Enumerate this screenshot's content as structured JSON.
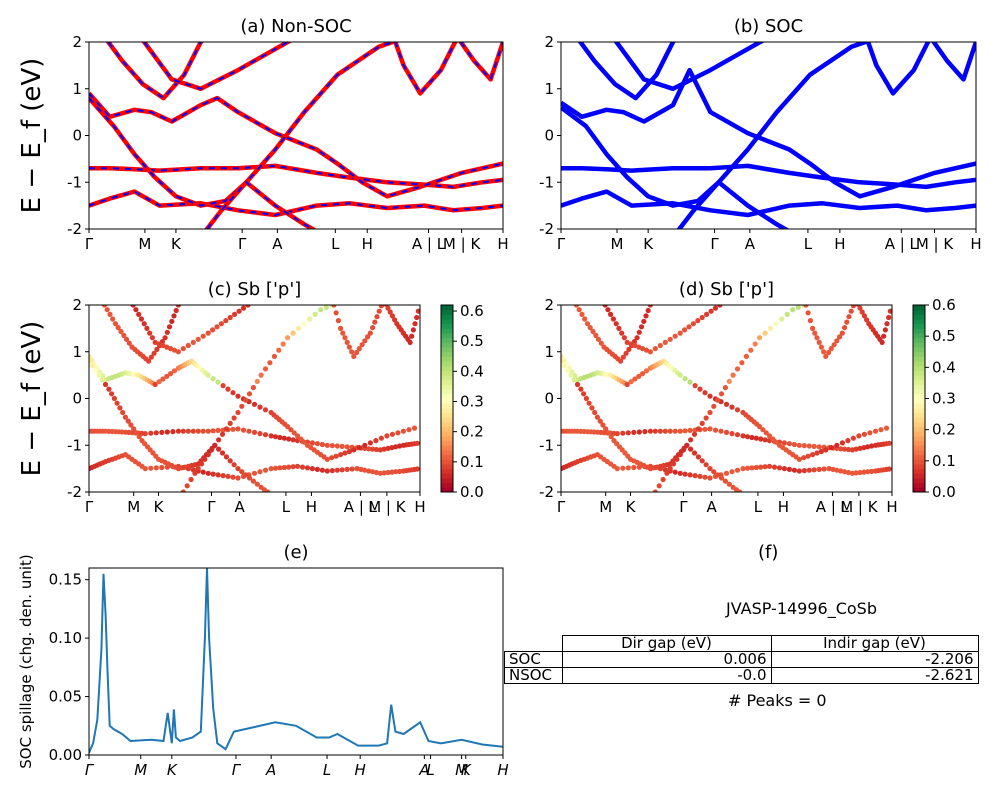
{
  "chart_data": [
    {
      "type": "line",
      "panel": "a",
      "title": "(a) Non-SOC",
      "ylabel": "E − E_f (eV)",
      "ylim": [
        -2,
        2
      ],
      "yticks": [
        -2,
        -1,
        0,
        1,
        2
      ],
      "kpath_labels": [
        "Γ",
        "M",
        "K",
        "Γ",
        "A",
        "L",
        "H",
        "A | L",
        "M | K",
        "H"
      ],
      "series": [
        {
          "color": "#ff0000",
          "dash_color": "#0000ff",
          "bands": [
            {
              "x": [
                0,
                0.05,
                0.11,
                0.17,
                0.27,
                0.36,
                0.45,
                0.55,
                0.63,
                0.72,
                0.81,
                0.88,
                0.95,
                1.0
              ],
              "y": [
                -1.5,
                -1.35,
                -1.2,
                -1.5,
                -1.45,
                -1.6,
                -1.7,
                -1.5,
                -1.45,
                -1.55,
                -1.5,
                -1.6,
                -1.55,
                -1.5
              ]
            },
            {
              "x": [
                0,
                0.05,
                0.11,
                0.17,
                0.27,
                0.36,
                0.45,
                0.55,
                0.63,
                0.72,
                0.81,
                0.88,
                0.95,
                1.0
              ],
              "y": [
                -0.7,
                -0.7,
                -0.72,
                -0.75,
                -0.7,
                -0.7,
                -0.65,
                -0.8,
                -0.9,
                -1.0,
                -1.05,
                -1.1,
                -1.0,
                -0.95
              ]
            },
            {
              "x": [
                0,
                0.05,
                0.11,
                0.15,
                0.2,
                0.27,
                0.31,
                0.36,
                0.45,
                0.55,
                0.6,
                0.66,
                0.72,
                0.8,
                0.9,
                1.0
              ],
              "y": [
                0.9,
                0.4,
                0.55,
                0.5,
                0.3,
                0.65,
                0.8,
                0.5,
                0.05,
                -0.3,
                -0.6,
                -1.0,
                -1.3,
                -1.1,
                -0.8,
                -0.6
              ]
            },
            {
              "x": [
                0,
                0.06,
                0.11,
                0.16,
                0.21,
                0.27,
                0.33,
                0.38,
                0.45,
                0.52,
                0.6,
                0.7,
                0.8,
                0.9,
                1.0
              ],
              "y": [
                0.8,
                0.2,
                -0.4,
                -0.9,
                -1.3,
                -1.5,
                -1.4,
                -1.0,
                -0.3,
                0.5,
                1.3,
                1.9,
                2.2,
                2.4,
                2.6
              ]
            },
            {
              "x": [
                0.03,
                0.08,
                0.13,
                0.18,
                0.23,
                0.27,
                0.32
              ],
              "y": [
                2.2,
                1.6,
                1.1,
                0.8,
                1.3,
                2.0,
                2.5
              ]
            },
            {
              "x": [
                0.1,
                0.15,
                0.2,
                0.27,
                0.36,
                0.44,
                0.52,
                0.58,
                0.63
              ],
              "y": [
                2.4,
                1.8,
                1.2,
                1.0,
                1.4,
                1.8,
                2.2,
                2.6,
                2.8
              ]
            },
            {
              "x": [
                0.25,
                0.32,
                0.38,
                0.45,
                0.52,
                0.58,
                0.64
              ],
              "y": [
                -2.4,
                -1.6,
                -1.0,
                -1.5,
                -1.9,
                -2.2,
                -2.4
              ]
            },
            {
              "x": [
                0.72,
                0.76,
                0.8,
                0.85,
                0.89,
                0.93,
                0.97,
                1.0
              ],
              "y": [
                2.5,
                1.5,
                0.9,
                1.4,
                2.1,
                1.6,
                1.2,
                2.0
              ]
            }
          ]
        }
      ]
    },
    {
      "type": "line",
      "panel": "b",
      "title": "(b) SOC",
      "ylim": [
        -2,
        2
      ],
      "yticks": [
        -2,
        -1,
        0,
        1,
        2
      ],
      "kpath_labels": [
        "Γ",
        "M",
        "K",
        "Γ",
        "A",
        "L",
        "H",
        "A | L",
        "M | K",
        "H"
      ],
      "series": [
        {
          "color": "#0000ff",
          "bands": [
            {
              "x": [
                0,
                0.05,
                0.11,
                0.17,
                0.27,
                0.36,
                0.45,
                0.55,
                0.63,
                0.72,
                0.81,
                0.88,
                0.95,
                1.0
              ],
              "y": [
                -1.5,
                -1.35,
                -1.2,
                -1.5,
                -1.45,
                -1.6,
                -1.7,
                -1.5,
                -1.45,
                -1.55,
                -1.5,
                -1.6,
                -1.55,
                -1.5
              ]
            },
            {
              "x": [
                0,
                0.05,
                0.11,
                0.17,
                0.27,
                0.36,
                0.45,
                0.55,
                0.63,
                0.72,
                0.81,
                0.88,
                0.95,
                1.0
              ],
              "y": [
                -0.7,
                -0.7,
                -0.72,
                -0.75,
                -0.7,
                -0.7,
                -0.65,
                -0.8,
                -0.9,
                -1.0,
                -1.05,
                -1.1,
                -1.0,
                -0.95
              ]
            },
            {
              "x": [
                0,
                0.05,
                0.11,
                0.15,
                0.2,
                0.27,
                0.31,
                0.36,
                0.45,
                0.55,
                0.6,
                0.66,
                0.72,
                0.8,
                0.9,
                1.0
              ],
              "y": [
                0.7,
                0.4,
                0.55,
                0.5,
                0.3,
                0.65,
                1.4,
                0.5,
                0.05,
                -0.3,
                -0.6,
                -1.0,
                -1.3,
                -1.1,
                -0.8,
                -0.6
              ]
            },
            {
              "x": [
                0,
                0.06,
                0.11,
                0.16,
                0.21,
                0.27,
                0.33,
                0.38,
                0.45,
                0.52,
                0.6,
                0.7,
                0.8,
                0.9,
                1.0
              ],
              "y": [
                0.6,
                0.2,
                -0.4,
                -0.9,
                -1.3,
                -1.5,
                -1.4,
                -1.0,
                -0.3,
                0.5,
                1.3,
                1.9,
                2.2,
                2.4,
                2.6
              ]
            },
            {
              "x": [
                0.03,
                0.08,
                0.13,
                0.18,
                0.23,
                0.27,
                0.32
              ],
              "y": [
                2.2,
                1.6,
                1.1,
                0.8,
                1.3,
                2.0,
                2.5
              ]
            },
            {
              "x": [
                0.1,
                0.15,
                0.2,
                0.27,
                0.36,
                0.44,
                0.52,
                0.58,
                0.63
              ],
              "y": [
                2.4,
                1.8,
                1.2,
                1.0,
                1.4,
                1.8,
                2.2,
                2.6,
                2.8
              ]
            },
            {
              "x": [
                0.25,
                0.32,
                0.38,
                0.45,
                0.52,
                0.58,
                0.64
              ],
              "y": [
                -2.4,
                -1.6,
                -1.0,
                -1.5,
                -1.9,
                -2.2,
                -2.4
              ]
            },
            {
              "x": [
                0.72,
                0.76,
                0.8,
                0.85,
                0.89,
                0.93,
                0.97,
                1.0
              ],
              "y": [
                2.5,
                1.5,
                0.9,
                1.4,
                2.1,
                1.6,
                1.2,
                2.0
              ]
            }
          ]
        }
      ]
    },
    {
      "type": "scatter",
      "panel": "c",
      "title": "(c)  Sb ['p']",
      "ylabel": "E − E_f (eV)",
      "ylim": [
        -2,
        2
      ],
      "yticks": [
        -2,
        -1,
        0,
        1,
        2
      ],
      "kpath_labels": [
        "Γ",
        "M",
        "K",
        "Γ",
        "A",
        "L",
        "H",
        "A | L",
        "M | K",
        "H"
      ],
      "colorbar": {
        "min": 0.0,
        "max": 0.62,
        "ticks": [
          "0.0",
          "0.1",
          "0.2",
          "0.3",
          "0.4",
          "0.5",
          "0.6"
        ],
        "colormap": "RdYlGn"
      }
    },
    {
      "type": "scatter",
      "panel": "d",
      "title": "(d) Sb ['p']",
      "ylim": [
        -2,
        2
      ],
      "yticks": [
        -2,
        -1,
        0,
        1,
        2
      ],
      "kpath_labels": [
        "Γ",
        "M",
        "K",
        "Γ",
        "A",
        "L",
        "H",
        "A | L",
        "M | K",
        "H"
      ],
      "colorbar": {
        "min": 0.0,
        "max": 0.6,
        "ticks": [
          "0.0",
          "0.1",
          "0.2",
          "0.3",
          "0.4",
          "0.5",
          "0.6"
        ],
        "colormap": "RdYlGn"
      }
    },
    {
      "type": "line",
      "panel": "e",
      "title": "(e)",
      "ylabel": "SOC spillage (chg. den. unit)",
      "ylim": [
        0,
        0.16
      ],
      "yticks": [
        "0.00",
        "0.05",
        "0.10",
        "0.15"
      ],
      "kpath_labels": [
        "Γ",
        "M",
        "K",
        "Γ",
        "A",
        "L",
        "H",
        "A",
        "L",
        "M",
        "K",
        "H"
      ],
      "series": [
        {
          "color": "#1f77b4",
          "x": [
            0,
            0.01,
            0.02,
            0.03,
            0.035,
            0.04,
            0.045,
            0.05,
            0.06,
            0.08,
            0.1,
            0.15,
            0.18,
            0.19,
            0.2,
            0.205,
            0.21,
            0.22,
            0.25,
            0.27,
            0.28,
            0.285,
            0.29,
            0.3,
            0.31,
            0.33,
            0.35,
            0.4,
            0.45,
            0.5,
            0.55,
            0.58,
            0.6,
            0.65,
            0.7,
            0.72,
            0.73,
            0.74,
            0.76,
            0.8,
            0.82,
            0.85,
            0.9,
            0.95,
            1.0
          ],
          "y": [
            0.002,
            0.01,
            0.03,
            0.09,
            0.155,
            0.12,
            0.07,
            0.025,
            0.022,
            0.018,
            0.012,
            0.013,
            0.012,
            0.036,
            0.01,
            0.039,
            0.015,
            0.012,
            0.015,
            0.02,
            0.1,
            0.16,
            0.1,
            0.04,
            0.01,
            0.005,
            0.02,
            0.024,
            0.028,
            0.025,
            0.015,
            0.015,
            0.018,
            0.008,
            0.008,
            0.01,
            0.043,
            0.02,
            0.018,
            0.028,
            0.012,
            0.01,
            0.013,
            0.009,
            0.007
          ]
        }
      ]
    }
  ],
  "panel_f": {
    "title": "(f)",
    "material": "JVASP-14996_CoSb",
    "table": {
      "headers": [
        "Dir gap (eV)",
        "Indir gap (eV)"
      ],
      "rows": [
        {
          "label": "SOC",
          "dir": "0.006",
          "indir": "-2.206"
        },
        {
          "label": "NSOC",
          "dir": "-0.0",
          "indir": "-2.621"
        }
      ]
    },
    "peaks": "# Peaks = 0"
  }
}
